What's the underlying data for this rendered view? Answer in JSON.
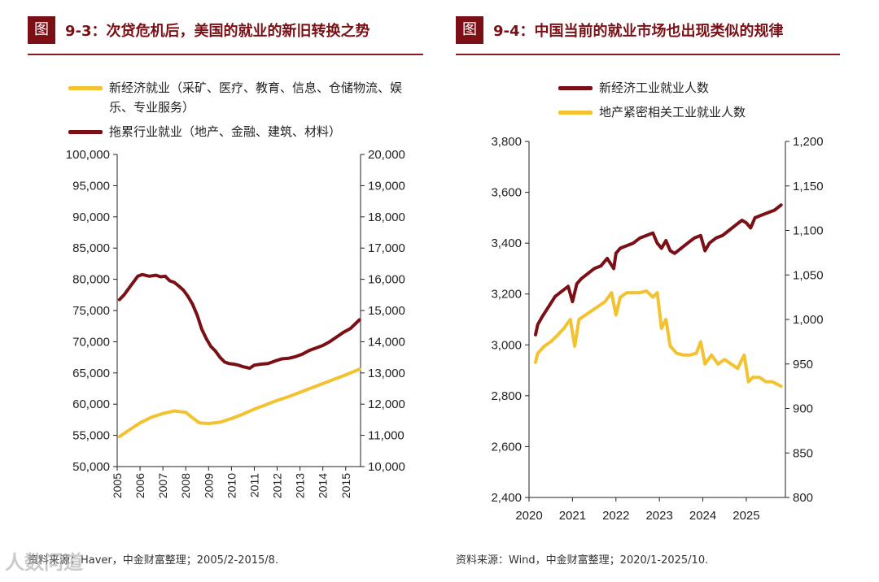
{
  "left": {
    "figure_no": "图",
    "title": "9-3：次贷危机后，美国的就业的新旧转换之势",
    "legend": [
      {
        "label": "新经济就业（采矿、医疗、教育、信息、仓储物流、娱乐、专业服务）",
        "color": "#f2c230"
      },
      {
        "label": "拖累行业就业（地产、金融、建筑、材料）",
        "color": "#7a1016"
      }
    ],
    "source": "资料来源：Haver，中金财富整理；2005/2-2015/8."
  },
  "right": {
    "figure_no": "图",
    "title": "9-4：中国当前的就业市场也出现类似的规律",
    "legend": [
      {
        "label": "新经济工业就业人数",
        "color": "#7a1016"
      },
      {
        "label": "地产紧密相关工业就业人数",
        "color": "#f2c230"
      }
    ],
    "source": "资料来源：Wind，中金财富整理；2020/1-2025/10."
  },
  "watermark": "人数问道",
  "chart_data": [
    {
      "type": "line",
      "title": "9-3：次贷危机后，美国的就业的新旧转换之势",
      "categories": [
        "2005",
        "2006",
        "2007",
        "2008",
        "2009",
        "2010",
        "2011",
        "2012",
        "2013",
        "2014",
        "2015"
      ],
      "y_left": {
        "ylim": [
          50000,
          100000
        ],
        "ticks": [
          "50,000",
          "55,000",
          "60,000",
          "65,000",
          "70,000",
          "75,000",
          "80,000",
          "85,000",
          "90,000",
          "95,000",
          "100,000"
        ]
      },
      "y_right": {
        "ylim": [
          10000,
          20000
        ],
        "ticks": [
          "10,000",
          "11,000",
          "12,000",
          "13,000",
          "14,000",
          "15,000",
          "16,000",
          "17,000",
          "18,000",
          "19,000",
          "20,000"
        ]
      },
      "series": [
        {
          "name": "新经济就业（采矿、医疗、教育、信息、仓储物流、娱乐、专业服务）",
          "axis": "left",
          "color": "#f2c230",
          "x": [
            2005.1,
            2005.5,
            2006.0,
            2006.5,
            2007.0,
            2007.5,
            2008.0,
            2008.3,
            2008.6,
            2009.0,
            2009.5,
            2010.0,
            2010.5,
            2011.0,
            2011.5,
            2012.0,
            2012.5,
            2013.0,
            2013.5,
            2014.0,
            2014.5,
            2015.0,
            2015.6
          ],
          "values": [
            54800,
            55800,
            57000,
            57900,
            58500,
            58900,
            58700,
            57800,
            57000,
            56900,
            57100,
            57700,
            58400,
            59200,
            59900,
            60600,
            61200,
            61900,
            62600,
            63300,
            64000,
            64700,
            65600
          ]
        },
        {
          "name": "拖累行业就业（地产、金融、建筑、材料）",
          "axis": "right",
          "color": "#7a1016",
          "x": [
            2005.1,
            2005.3,
            2005.6,
            2005.9,
            2006.1,
            2006.4,
            2006.7,
            2006.9,
            2007.1,
            2007.3,
            2007.5,
            2007.7,
            2007.9,
            2008.1,
            2008.3,
            2008.5,
            2008.7,
            2008.9,
            2009.1,
            2009.3,
            2009.5,
            2009.7,
            2009.9,
            2010.1,
            2010.3,
            2010.5,
            2010.8,
            2011.0,
            2011.3,
            2011.6,
            2011.9,
            2012.2,
            2012.5,
            2012.8,
            2013.1,
            2013.4,
            2013.7,
            2014.0,
            2014.3,
            2014.6,
            2014.9,
            2015.2,
            2015.6
          ],
          "values": [
            15350,
            15500,
            15800,
            16100,
            16150,
            16100,
            16130,
            16080,
            16100,
            15950,
            15900,
            15780,
            15650,
            15450,
            15200,
            14850,
            14400,
            14100,
            13850,
            13700,
            13500,
            13350,
            13300,
            13280,
            13250,
            13200,
            13150,
            13250,
            13280,
            13300,
            13380,
            13450,
            13470,
            13520,
            13600,
            13720,
            13800,
            13880,
            14000,
            14150,
            14300,
            14420,
            14700
          ]
        }
      ]
    },
    {
      "type": "line",
      "title": "9-4：中国当前的就业市场也出现类似的规律",
      "categories": [
        "2020",
        "2021",
        "2022",
        "2023",
        "2024",
        "2025"
      ],
      "y_left": {
        "ylim": [
          2400,
          3800
        ],
        "ticks": [
          "2,400",
          "2,600",
          "2,800",
          "3,000",
          "3,200",
          "3,400",
          "3,600",
          "3,800"
        ]
      },
      "y_right": {
        "ylim": [
          800,
          1200
        ],
        "ticks": [
          "800",
          "850",
          "900",
          "950",
          "1,000",
          "1,050",
          "1,100",
          "1,150",
          "1,200"
        ]
      },
      "series": [
        {
          "name": "新经济工业就业人数",
          "axis": "left",
          "color": "#7a1016",
          "x": [
            2020.15,
            2020.2,
            2020.3,
            2020.45,
            2020.6,
            2020.75,
            2020.9,
            2021.0,
            2021.1,
            2021.2,
            2021.35,
            2021.5,
            2021.65,
            2021.8,
            2021.95,
            2022.0,
            2022.1,
            2022.25,
            2022.4,
            2022.55,
            2022.7,
            2022.85,
            2022.95,
            2023.05,
            2023.15,
            2023.25,
            2023.35,
            2023.5,
            2023.65,
            2023.8,
            2023.95,
            2024.05,
            2024.15,
            2024.3,
            2024.45,
            2024.6,
            2024.75,
            2024.9,
            2025.0,
            2025.1,
            2025.2,
            2025.35,
            2025.5,
            2025.65,
            2025.8
          ],
          "values": [
            3040,
            3080,
            3110,
            3150,
            3190,
            3210,
            3230,
            3170,
            3240,
            3260,
            3280,
            3300,
            3310,
            3340,
            3300,
            3360,
            3380,
            3390,
            3400,
            3420,
            3430,
            3440,
            3400,
            3380,
            3410,
            3370,
            3360,
            3380,
            3400,
            3420,
            3430,
            3370,
            3400,
            3420,
            3430,
            3450,
            3470,
            3490,
            3480,
            3460,
            3500,
            3510,
            3520,
            3530,
            3550
          ]
        },
        {
          "name": "地产紧密相关工业就业人数",
          "axis": "right",
          "color": "#f2c230",
          "x": [
            2020.15,
            2020.2,
            2020.35,
            2020.5,
            2020.65,
            2020.8,
            2020.95,
            2021.05,
            2021.15,
            2021.3,
            2021.45,
            2021.6,
            2021.75,
            2021.9,
            2022.0,
            2022.1,
            2022.25,
            2022.4,
            2022.55,
            2022.7,
            2022.85,
            2022.95,
            2023.05,
            2023.15,
            2023.25,
            2023.4,
            2023.55,
            2023.7,
            2023.85,
            2023.95,
            2024.05,
            2024.2,
            2024.35,
            2024.5,
            2024.65,
            2024.8,
            2024.95,
            2025.05,
            2025.15,
            2025.3,
            2025.45,
            2025.6,
            2025.8
          ],
          "values": [
            952,
            962,
            970,
            975,
            982,
            990,
            1000,
            970,
            1000,
            1005,
            1010,
            1015,
            1020,
            1030,
            1005,
            1025,
            1030,
            1030,
            1030,
            1032,
            1025,
            1030,
            990,
            1000,
            970,
            962,
            960,
            960,
            962,
            975,
            950,
            960,
            950,
            955,
            950,
            945,
            960,
            930,
            935,
            935,
            930,
            930,
            925
          ]
        }
      ]
    }
  ]
}
